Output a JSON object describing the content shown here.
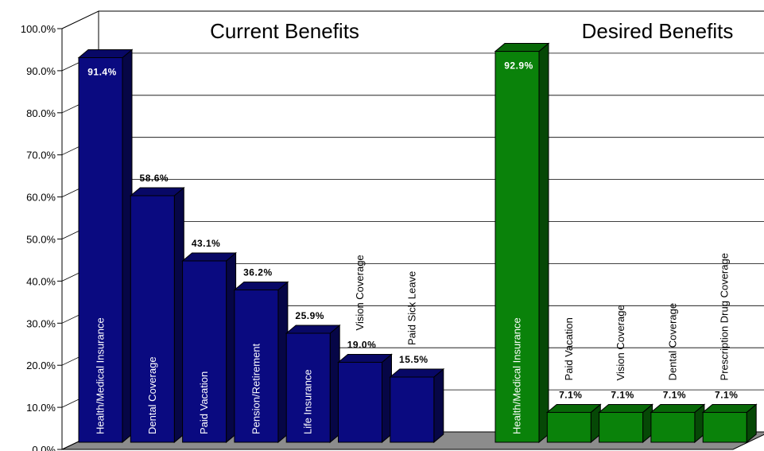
{
  "chart_data": {
    "type": "bar",
    "ylim": [
      0,
      100
    ],
    "y_ticks": [
      "0.0%",
      "10.0%",
      "20.0%",
      "30.0%",
      "40.0%",
      "50.0%",
      "60.0%",
      "70.0%",
      "80.0%",
      "90.0%",
      "100.0%"
    ],
    "grid": true,
    "groups": [
      {
        "title": "Current Benefits",
        "color": "#0a0a80",
        "categories": [
          "Health/Medical Insurance",
          "Dental Coverage",
          "Paid Vacation",
          "Pension/Retirement",
          "Life Insurance",
          "Vision Coverage",
          "Paid Sick Leave"
        ],
        "values": [
          91.4,
          58.6,
          43.1,
          36.2,
          25.9,
          19.0,
          15.5
        ],
        "value_labels": [
          "91.4%",
          "58.6%",
          "43.1%",
          "36.2%",
          "25.9%",
          "19.0%",
          "15.5%"
        ]
      },
      {
        "title": "Desired Benefits",
        "color": "#0a820a",
        "categories": [
          "Health/Medical Insurance",
          "Paid Vacation",
          "Vision Coverage",
          "Dental Coverage",
          "Prescription Drug Coverage"
        ],
        "values": [
          92.9,
          7.1,
          7.1,
          7.1,
          7.1
        ],
        "value_labels": [
          "92.9%",
          "7.1%",
          "7.1%",
          "7.1%",
          "7.1%"
        ]
      }
    ]
  }
}
